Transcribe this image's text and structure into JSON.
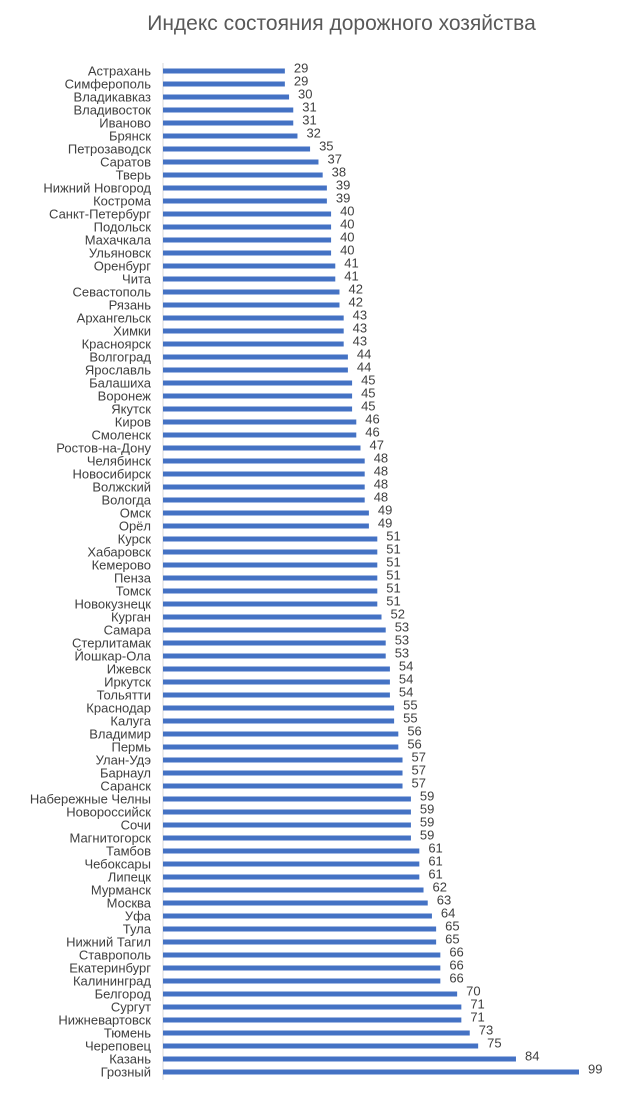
{
  "chart_data": {
    "type": "bar",
    "orientation": "horizontal",
    "title": "Индекс состояния дорожного хозяйства",
    "xlabel": "",
    "ylabel": "",
    "xlim": [
      0,
      100
    ],
    "grid": false,
    "legend": "none",
    "bar_color": "#4472C4",
    "categories": [
      "Астрахань",
      "Симферополь",
      "Владикавказ",
      "Владивосток",
      "Иваново",
      "Брянск",
      "Петрозаводск",
      "Саратов",
      "Тверь",
      "Нижний Новгород",
      "Кострома",
      "Санкт-Петербург",
      "Подольск",
      "Махачкала",
      "Ульяновск",
      "Оренбург",
      "Чита",
      "Севастополь",
      "Рязань",
      "Архангельск",
      "Химки",
      "Красноярск",
      "Волгоград",
      "Ярославль",
      "Балашиха",
      "Воронеж",
      "Якутск",
      "Киров",
      "Смоленск",
      "Ростов-на-Дону",
      "Челябинск",
      "Новосибирск",
      "Волжский",
      "Вологда",
      "Омск",
      "Орёл",
      "Курск",
      "Хабаровск",
      "Кемерово",
      "Пенза",
      "Томск",
      "Новокузнецк",
      "Курган",
      "Самара",
      "Стерлитамак",
      "Йошкар-Ола",
      "Ижевск",
      "Иркутск",
      "Тольятти",
      "Краснодар",
      "Калуга",
      "Владимир",
      "Пермь",
      "Улан-Удэ",
      "Барнаул",
      "Саранск",
      "Набережные Челны",
      "Новороссийск",
      "Сочи",
      "Магнитогорск",
      "Тамбов",
      "Чебоксары",
      "Липецк",
      "Мурманск",
      "Москва",
      "Уфа",
      "Тула",
      "Нижний Тагил",
      "Ставрополь",
      "Екатеринбург",
      "Калининград",
      "Белгород",
      "Сургут",
      "Нижневартовск",
      "Тюмень",
      "Череповец",
      "Казань",
      "Грозный"
    ],
    "values": [
      29,
      29,
      30,
      31,
      31,
      32,
      35,
      37,
      38,
      39,
      39,
      40,
      40,
      40,
      40,
      41,
      41,
      42,
      42,
      43,
      43,
      43,
      44,
      44,
      45,
      45,
      45,
      46,
      46,
      47,
      48,
      48,
      48,
      48,
      49,
      49,
      51,
      51,
      51,
      51,
      51,
      51,
      52,
      53,
      53,
      53,
      54,
      54,
      54,
      55,
      55,
      56,
      56,
      57,
      57,
      57,
      59,
      59,
      59,
      59,
      61,
      61,
      61,
      62,
      63,
      64,
      65,
      65,
      66,
      66,
      66,
      70,
      71,
      71,
      73,
      75,
      84,
      99
    ]
  }
}
